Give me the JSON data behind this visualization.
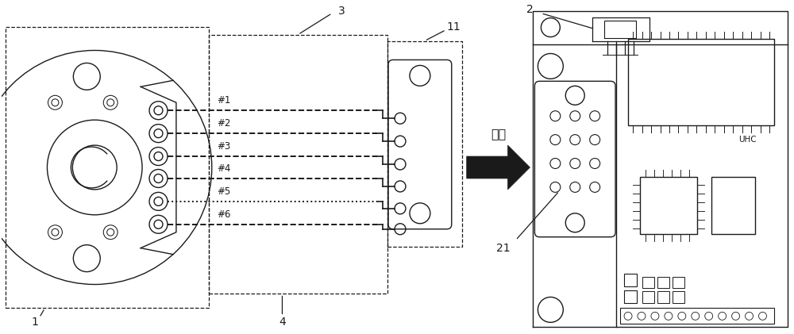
{
  "bg_color": "#ffffff",
  "line_color": "#1a1a1a",
  "pin_labels": [
    "#1",
    "#2",
    "#3",
    "#4",
    "#5",
    "#6"
  ],
  "lian_jie": "连接",
  "figsize": [
    10.0,
    4.21
  ],
  "dpi": 100
}
